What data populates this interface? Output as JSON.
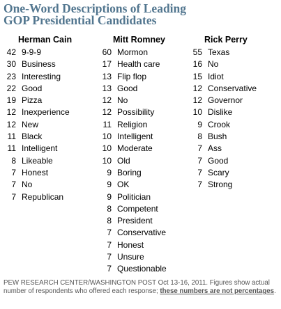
{
  "title_lines": [
    "One-Word Descriptions of Leading",
    "GOP Presidential Candidates"
  ],
  "chart_data": {
    "type": "table",
    "columns": [
      {
        "candidate": "Herman Cain",
        "entries": [
          {
            "count": 42,
            "word": "9-9-9"
          },
          {
            "count": 30,
            "word": "Business"
          },
          {
            "count": 23,
            "word": "Interesting"
          },
          {
            "count": 22,
            "word": "Good"
          },
          {
            "count": 19,
            "word": "Pizza"
          },
          {
            "count": 12,
            "word": "Inexperience"
          },
          {
            "count": 12,
            "word": "New"
          },
          {
            "count": 11,
            "word": "Black"
          },
          {
            "count": 11,
            "word": "Intelligent"
          },
          {
            "count": 8,
            "word": "Likeable"
          },
          {
            "count": 7,
            "word": "Honest"
          },
          {
            "count": 7,
            "word": "No"
          },
          {
            "count": 7,
            "word": "Republican"
          }
        ]
      },
      {
        "candidate": "Mitt Romney",
        "entries": [
          {
            "count": 60,
            "word": "Mormon"
          },
          {
            "count": 17,
            "word": "Health care"
          },
          {
            "count": 13,
            "word": "Flip flop"
          },
          {
            "count": 13,
            "word": "Good"
          },
          {
            "count": 12,
            "word": "No"
          },
          {
            "count": 12,
            "word": "Possibility"
          },
          {
            "count": 11,
            "word": "Religion"
          },
          {
            "count": 10,
            "word": "Intelligent"
          },
          {
            "count": 10,
            "word": "Moderate"
          },
          {
            "count": 10,
            "word": "Old"
          },
          {
            "count": 9,
            "word": "Boring"
          },
          {
            "count": 9,
            "word": "OK"
          },
          {
            "count": 9,
            "word": "Politician"
          },
          {
            "count": 8,
            "word": "Competent"
          },
          {
            "count": 8,
            "word": "President"
          },
          {
            "count": 7,
            "word": "Conservative"
          },
          {
            "count": 7,
            "word": "Honest"
          },
          {
            "count": 7,
            "word": "Unsure"
          },
          {
            "count": 7,
            "word": "Questionable"
          }
        ]
      },
      {
        "candidate": "Rick Perry",
        "entries": [
          {
            "count": 55,
            "word": "Texas"
          },
          {
            "count": 16,
            "word": "No"
          },
          {
            "count": 15,
            "word": "Idiot"
          },
          {
            "count": 12,
            "word": "Conservative"
          },
          {
            "count": 12,
            "word": "Governor"
          },
          {
            "count": 10,
            "word": "Dislike"
          },
          {
            "count": 9,
            "word": "Crook"
          },
          {
            "count": 8,
            "word": "Bush"
          },
          {
            "count": 7,
            "word": "Ass"
          },
          {
            "count": 7,
            "word": "Good"
          },
          {
            "count": 7,
            "word": "Scary"
          },
          {
            "count": 7,
            "word": "Strong"
          }
        ]
      }
    ]
  },
  "note": {
    "text": "PEW RESEARCH CENTER/WASHINGTON  POST Oct 13-16, 2011. Figures show actual number of respondents who offered each response; ",
    "emphasis": "these numbers are not percentages",
    "end": "."
  }
}
